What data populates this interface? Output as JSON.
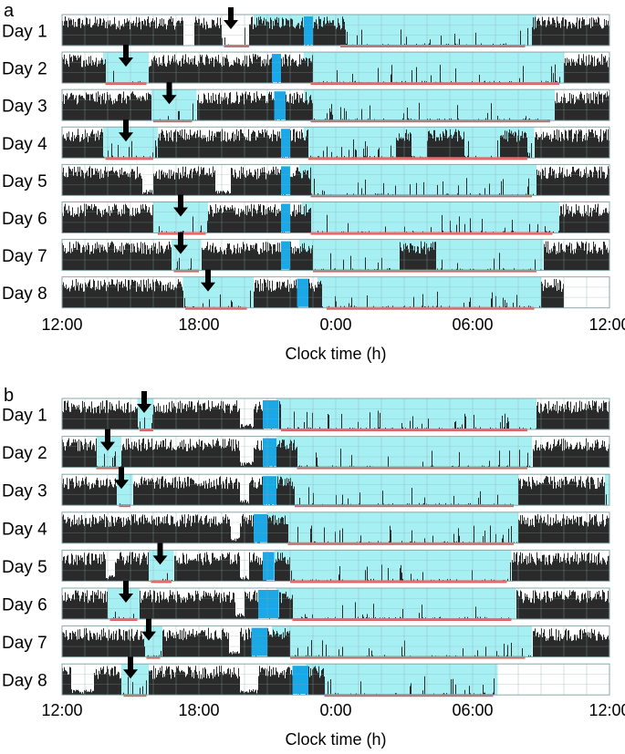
{
  "colors": {
    "activity": "#2a2a2a",
    "dark_phase": "#a6f0f3",
    "light_pulse": "#1aa8e6",
    "sleep_bar": "#e45a5a",
    "grid": "#8aa8a8",
    "arrow": "#000000"
  },
  "chart_data": {
    "type": "actogram",
    "x_unit": "clock time, h (12:00 -> next 12:00)",
    "x_range": [
      12,
      36
    ],
    "x_ticks": [
      "12:00",
      "18:00",
      "0:00",
      "06:00",
      "12:00"
    ],
    "xlabel": "Clock time (h)",
    "panels": [
      {
        "letter": "a",
        "days": [
          {
            "label": "Day 1",
            "dark": [
              [
                20.4,
                32.8
              ]
            ],
            "light_pulse": [
              22.6,
              23.0
            ],
            "arrow": 19.4,
            "sleep": [
              [
                19.1,
                20.2
              ],
              [
                24.2,
                32.3
              ]
            ],
            "active": [
              [
                12.0,
                17.3
              ],
              [
                17.8,
                19.0
              ],
              [
                20.2,
                22.6
              ],
              [
                23.0,
                24.4
              ],
              [
                32.6,
                36.0
              ]
            ],
            "quiet_dips": [
              [
                17.3,
                17.8
              ]
            ]
          },
          {
            "label": "Day 2",
            "dark": [
              [
                13.8,
                15.8
              ],
              [
                22.6,
                34.0
              ]
            ],
            "light_pulse": [
              21.2,
              21.6
            ],
            "arrow": 14.8,
            "sleep": [
              [
                13.9,
                15.7
              ],
              [
                22.9,
                33.8
              ]
            ],
            "active": [
              [
                12.0,
                13.9
              ],
              [
                15.8,
                21.2
              ],
              [
                21.6,
                23.0
              ],
              [
                34.0,
                36.0
              ]
            ],
            "quiet_dips": []
          },
          {
            "label": "Day 3",
            "dark": [
              [
                15.9,
                17.9
              ],
              [
                22.6,
                33.6
              ]
            ],
            "light_pulse": [
              21.3,
              21.8
            ],
            "arrow": 16.7,
            "sleep": [
              [
                16.0,
                17.7
              ],
              [
                22.9,
                33.4
              ]
            ],
            "active": [
              [
                12.0,
                15.9
              ],
              [
                17.9,
                21.3
              ],
              [
                21.8,
                23.0
              ],
              [
                33.6,
                36.0
              ]
            ],
            "quiet_dips": []
          },
          {
            "label": "Day 4",
            "dark": [
              [
                13.8,
                16.2
              ],
              [
                22.6,
                32.7
              ]
            ],
            "light_pulse": [
              21.6,
              22.0
            ],
            "arrow": 14.8,
            "sleep": [
              [
                13.9,
                16.0
              ],
              [
                22.8,
                32.4
              ]
            ],
            "active": [
              [
                12.0,
                13.8
              ],
              [
                16.2,
                21.6
              ],
              [
                22.0,
                22.8
              ],
              [
                26.6,
                27.3
              ],
              [
                28.0,
                29.6
              ],
              [
                31.2,
                32.4
              ],
              [
                32.7,
                36.0
              ]
            ],
            "quiet_dips": []
          },
          {
            "label": "Day 5",
            "dark": [
              [
                22.4,
                32.8
              ]
            ],
            "light_pulse": [
              21.6,
              22.0
            ],
            "arrow": null,
            "sleep": [
              [
                22.9,
                32.6
              ]
            ],
            "active": [
              [
                12.0,
                21.6
              ],
              [
                22.0,
                22.9
              ],
              [
                32.8,
                36.0
              ]
            ],
            "quiet_dips": [
              [
                15.5,
                16.0
              ],
              [
                18.7,
                19.4
              ]
            ]
          },
          {
            "label": "Day 6",
            "dark": [
              [
                16.0,
                18.4
              ],
              [
                22.5,
                33.8
              ]
            ],
            "light_pulse": [
              21.6,
              22.0
            ],
            "arrow": 17.2,
            "sleep": [
              [
                16.2,
                18.3
              ],
              [
                22.9,
                33.5
              ]
            ],
            "active": [
              [
                12.0,
                16.0
              ],
              [
                18.4,
                21.6
              ],
              [
                22.0,
                22.9
              ],
              [
                33.8,
                36.0
              ]
            ],
            "quiet_dips": []
          },
          {
            "label": "Day 7",
            "dark": [
              [
                16.8,
                18.1
              ],
              [
                22.4,
                33.1
              ]
            ],
            "light_pulse": [
              21.6,
              22.0
            ],
            "arrow": 17.2,
            "sleep": [
              [
                16.9,
                18.0
              ],
              [
                23.0,
                32.8
              ]
            ],
            "active": [
              [
                12.0,
                16.8
              ],
              [
                18.1,
                21.6
              ],
              [
                22.0,
                23.0
              ],
              [
                26.8,
                28.4
              ],
              [
                33.1,
                36.0
              ]
            ],
            "quiet_dips": []
          },
          {
            "label": "Day 8",
            "dark": [
              [
                17.3,
                20.4
              ],
              [
                23.2,
                33.0
              ]
            ],
            "light_pulse": [
              22.3,
              22.8
            ],
            "arrow": 18.4,
            "sleep": [
              [
                17.4,
                20.1
              ],
              [
                23.6,
                32.7
              ]
            ],
            "active": [
              [
                12.0,
                17.3
              ],
              [
                20.4,
                22.3
              ],
              [
                22.8,
                23.4
              ],
              [
                33.0,
                34.0
              ]
            ],
            "quiet_dips": [],
            "data_end": 34.0
          }
        ]
      },
      {
        "letter": "b",
        "days": [
          {
            "label": "Day 1",
            "dark": [
              [
                15.3,
                16.0
              ],
              [
                21.4,
                32.8
              ]
            ],
            "light_pulse": [
              20.8,
              21.5
            ],
            "arrow": 15.6,
            "sleep": [
              [
                15.4,
                16.0
              ],
              [
                21.6,
                32.4
              ]
            ],
            "active": [
              [
                12.0,
                15.3
              ],
              [
                16.0,
                20.8
              ],
              [
                21.5,
                21.6
              ],
              [
                32.8,
                36.0
              ]
            ],
            "quiet_dips": [
              [
                19.8,
                20.4
              ]
            ]
          },
          {
            "label": "Day 2",
            "dark": [
              [
                13.5,
                14.6
              ],
              [
                21.4,
                32.6
              ]
            ],
            "light_pulse": [
              20.8,
              21.4
            ],
            "arrow": 14.0,
            "sleep": [
              [
                13.5,
                14.5
              ],
              [
                22.3,
                32.4
              ]
            ],
            "active": [
              [
                12.0,
                13.5
              ],
              [
                14.6,
                20.8
              ],
              [
                21.4,
                22.3
              ],
              [
                32.6,
                36.0
              ]
            ],
            "quiet_dips": [
              [
                19.8,
                20.4
              ]
            ]
          },
          {
            "label": "Day 3",
            "dark": [
              [
                14.4,
                15.1
              ],
              [
                21.4,
                32.0
              ],
              [
                35.8,
                36.0
              ]
            ],
            "light_pulse": [
              20.8,
              21.4
            ],
            "arrow": 14.6,
            "sleep": [
              [
                14.5,
                15.0
              ],
              [
                22.2,
                31.8
              ]
            ],
            "active": [
              [
                12.0,
                14.4
              ],
              [
                15.1,
                20.8
              ],
              [
                21.4,
                22.2
              ],
              [
                32.0,
                35.8
              ]
            ],
            "quiet_dips": [
              [
                19.8,
                20.2
              ]
            ]
          },
          {
            "label": "Day 4",
            "dark": [
              [
                21.0,
                32.0
              ]
            ],
            "light_pulse": [
              20.4,
              21.0
            ],
            "arrow": null,
            "sleep": [
              [
                21.9,
                31.8
              ]
            ],
            "active": [
              [
                12.0,
                20.4
              ],
              [
                21.0,
                21.9
              ],
              [
                32.0,
                36.0
              ]
            ],
            "quiet_dips": [
              [
                19.4,
                19.8
              ]
            ]
          },
          {
            "label": "Day 5",
            "dark": [
              [
                15.8,
                16.9
              ],
              [
                21.3,
                31.7
              ]
            ],
            "light_pulse": [
              20.8,
              21.3
            ],
            "arrow": 16.3,
            "sleep": [
              [
                15.9,
                16.8
              ],
              [
                22.0,
                31.5
              ]
            ],
            "active": [
              [
                12.0,
                15.8
              ],
              [
                16.9,
                20.8
              ],
              [
                21.3,
                22.0
              ],
              [
                31.7,
                36.0
              ]
            ],
            "quiet_dips": [
              [
                13.9,
                14.3
              ],
              [
                19.8,
                20.2
              ]
            ]
          },
          {
            "label": "Day 6",
            "dark": [
              [
                14.0,
                15.4
              ],
              [
                21.4,
                31.9
              ]
            ],
            "light_pulse": [
              20.6,
              21.5
            ],
            "arrow": 14.8,
            "sleep": [
              [
                14.1,
                15.3
              ],
              [
                22.1,
                31.7
              ]
            ],
            "active": [
              [
                12.0,
                14.0
              ],
              [
                15.4,
                20.6
              ],
              [
                21.5,
                22.1
              ],
              [
                31.9,
                36.0
              ]
            ],
            "quiet_dips": [
              [
                19.6,
                20.0
              ]
            ]
          },
          {
            "label": "Day 7",
            "dark": [
              [
                15.6,
                16.4
              ],
              [
                21.2,
                32.6
              ]
            ],
            "light_pulse": [
              20.3,
              21.0
            ],
            "arrow": 15.8,
            "sleep": [
              [
                15.7,
                16.3
              ],
              [
                22.0,
                32.3
              ]
            ],
            "active": [
              [
                12.0,
                15.6
              ],
              [
                16.4,
                20.3
              ],
              [
                21.0,
                22.0
              ],
              [
                32.6,
                36.0
              ]
            ],
            "quiet_dips": [
              [
                19.3,
                19.8
              ]
            ]
          },
          {
            "label": "Day 8",
            "dark": [
              [
                14.6,
                15.8
              ],
              [
                22.7,
                31.1
              ]
            ],
            "light_pulse": [
              22.1,
              22.8
            ],
            "arrow": 15.0,
            "sleep": [
              [
                14.7,
                15.7
              ],
              [
                23.5,
                30.9
              ]
            ],
            "active": [
              [
                12.0,
                14.6
              ],
              [
                15.8,
                22.1
              ],
              [
                22.8,
                23.5
              ]
            ],
            "quiet_dips": [
              [
                12.4,
                13.4
              ],
              [
                19.8,
                20.6
              ]
            ],
            "data_end": 31.1
          }
        ]
      }
    ]
  }
}
